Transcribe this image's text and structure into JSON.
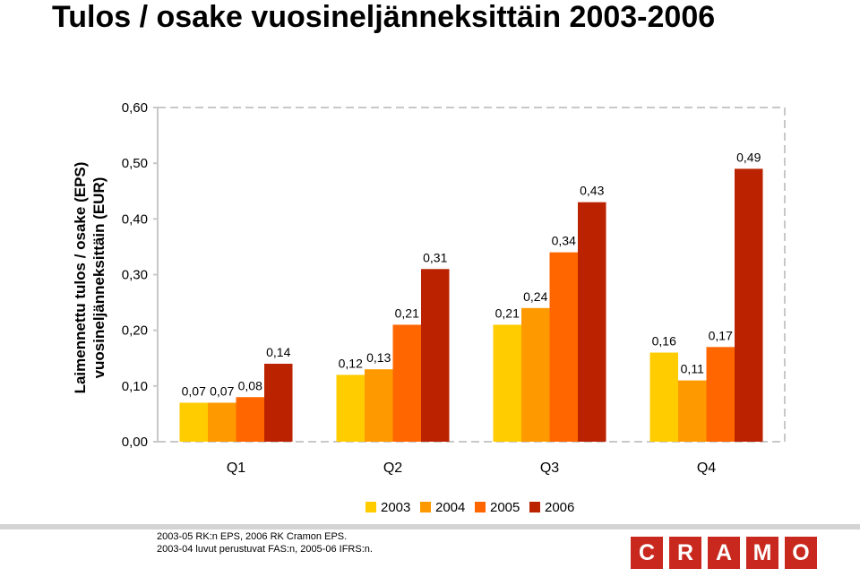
{
  "page": {
    "title": "Tulos / osake vuosineljänneksittäin 2003-2006",
    "footnotes": [
      "2003-05 RK:n EPS, 2006 RK Cramon EPS.",
      "2003-04 luvut perustuvat FAS:n, 2005-06 IFRS:n."
    ],
    "logo_letters": [
      "C",
      "R",
      "A",
      "M",
      "O"
    ]
  },
  "chart_data": {
    "type": "bar",
    "ylabel": [
      "Laimennettu tulos / osake (EPS)",
      "vuosineljänneksittäin (EUR)"
    ],
    "categories": [
      "Q1",
      "Q2",
      "Q3",
      "Q4"
    ],
    "ylim": [
      0,
      0.6
    ],
    "yticks": [
      "0,00",
      "0,10",
      "0,20",
      "0,30",
      "0,40",
      "0,50",
      "0,60"
    ],
    "grid": false,
    "legend_position": "bottom",
    "series": [
      {
        "name": "2003",
        "color": "#ffcc00",
        "values": [
          0.07,
          0.12,
          0.21,
          0.16
        ],
        "labels": [
          "0,07",
          "0,12",
          "0,21",
          "0,16"
        ]
      },
      {
        "name": "2004",
        "color": "#ff9900",
        "values": [
          0.07,
          0.13,
          0.24,
          0.11
        ],
        "labels": [
          "0,07",
          "0,13",
          "0,24",
          "0,11"
        ]
      },
      {
        "name": "2005",
        "color": "#ff6600",
        "values": [
          0.08,
          0.21,
          0.34,
          0.17
        ],
        "labels": [
          "0,08",
          "0,21",
          "0,34",
          "0,17"
        ]
      },
      {
        "name": "2006",
        "color": "#bb2200",
        "values": [
          0.14,
          0.31,
          0.43,
          0.49
        ],
        "labels": [
          "0,14",
          "0,31",
          "0,43",
          "0,49"
        ]
      }
    ]
  }
}
